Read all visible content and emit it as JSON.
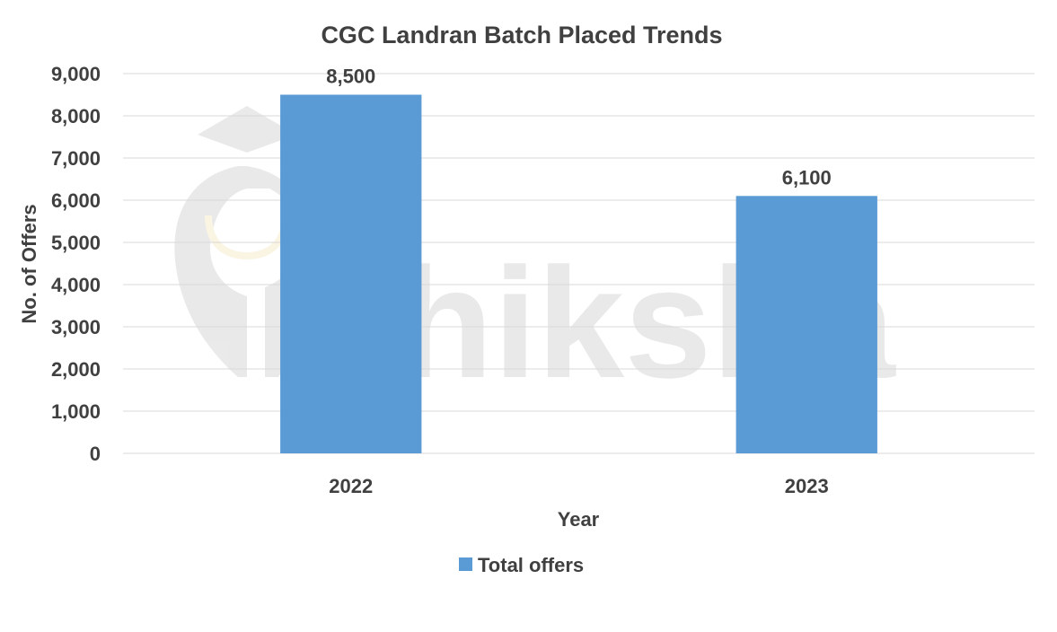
{
  "chart_data": {
    "type": "bar",
    "title": "CGC Landran Batch Placed Trends",
    "xlabel": "Year",
    "ylabel": "No. of Offers",
    "categories": [
      "2022",
      "2023"
    ],
    "series": [
      {
        "name": "Total offers",
        "values": [
          8500,
          6100
        ]
      }
    ],
    "data_labels": [
      "8,500",
      "6,100"
    ],
    "ylim": [
      0,
      9000
    ],
    "yticks": [
      0,
      1000,
      2000,
      3000,
      4000,
      5000,
      6000,
      7000,
      8000,
      9000
    ],
    "ytick_labels": [
      "0",
      "1,000",
      "2,000",
      "3,000",
      "4,000",
      "5,000",
      "6,000",
      "7,000",
      "8,000",
      "9,000"
    ],
    "grid": true,
    "legend": "bottom",
    "colors": {
      "bar": "#5B9BD5",
      "text": "#404040",
      "grid": "#D9D9D9",
      "watermark": "#D0D0D0"
    }
  },
  "watermark": {
    "text": "shiksha"
  }
}
